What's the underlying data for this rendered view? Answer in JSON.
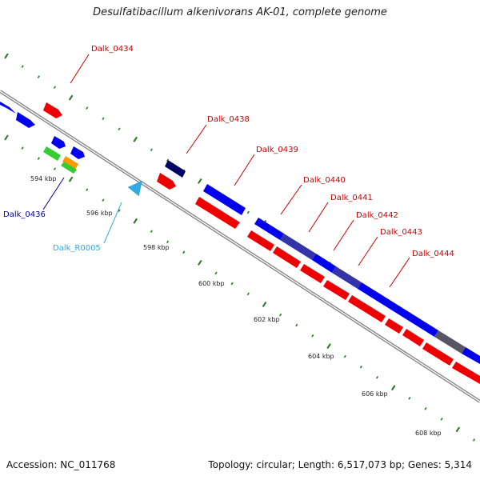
{
  "title": "Desulfatibacillum alkenivorans AK-01, complete genome",
  "footer": {
    "accession": "Accession: NC_011768",
    "summary": "Topology: circular; Length: 6,517,073 bp; Genes: 5,314"
  },
  "colors": {
    "backbone": "#888888",
    "tick": "#1f7a1f",
    "forward_cds": "#0000ee",
    "reverse_cds": "#ee0000",
    "label_red": "#cc0000",
    "label_navy": "#000099",
    "label_cyan": "#33aadd"
  },
  "scale_labels": [
    "594 kbp",
    "596 kbp",
    "598 kbp",
    "600 kbp",
    "602 kbp",
    "604 kbp",
    "606 kbp",
    "608 kbp"
  ],
  "gene_labels": [
    {
      "id": "Dalk_0434",
      "color": "#cc0000"
    },
    {
      "id": "Dalk_0436",
      "color": "#000099"
    },
    {
      "id": "Dalk_R0005",
      "color": "#33aadd"
    },
    {
      "id": "Dalk_0438",
      "color": "#cc0000"
    },
    {
      "id": "Dalk_0439",
      "color": "#cc0000"
    },
    {
      "id": "Dalk_0440",
      "color": "#cc0000"
    },
    {
      "id": "Dalk_0441",
      "color": "#cc0000"
    },
    {
      "id": "Dalk_0442",
      "color": "#cc0000"
    },
    {
      "id": "Dalk_0443",
      "color": "#cc0000"
    },
    {
      "id": "Dalk_0444",
      "color": "#cc0000"
    }
  ]
}
